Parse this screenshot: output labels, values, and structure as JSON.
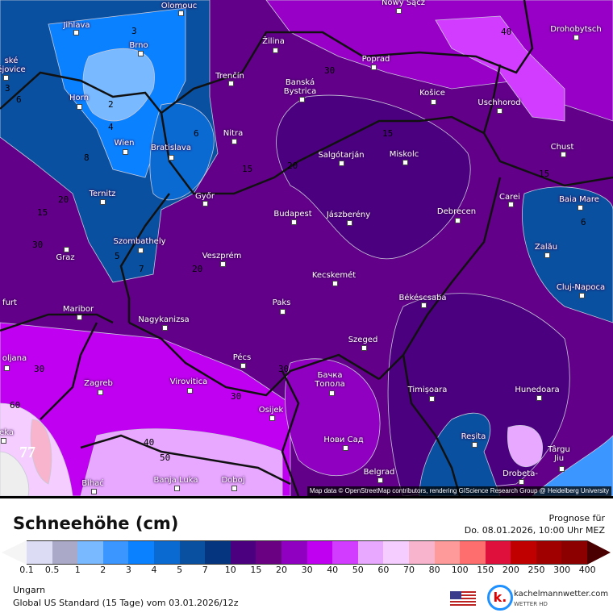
{
  "map": {
    "cities": [
      "Olomouc",
      "Nowy Sącz",
      "Jihlava",
      "Brno",
      "ské\nějovice",
      "Žilina",
      "Poprad",
      "Drohobytsch",
      "Trenčín",
      "Banská\nBystrica",
      "Košice",
      "Uschhorod",
      "Horn",
      "Nitra",
      "Wien",
      "Bratislava",
      "Salgótarján",
      "Miskolc",
      "Chust",
      "Ternitz",
      "Győr",
      "Carei",
      "Baia Mare",
      "Budapest",
      "Jászberény",
      "Debrecen",
      "Graz",
      "Szombathely",
      "Zalău",
      "Veszprém",
      "Cluj-Napoca",
      "Kecskemét",
      "Paks",
      "Békéscsaba",
      "Maribor",
      "Nagykanizsa",
      "Szeged",
      "Pécs",
      "oljana",
      "Бачка\nТопола",
      "Zagreb",
      "Virovitica",
      "Timișoara",
      "Hunedoara",
      "Osijek",
      "eka",
      "Reșita",
      "Нови Сад",
      "Târgu\nJiu",
      "Bihać",
      "Banja Luka",
      "Doboj",
      "Belgrad",
      "Drobeta-",
      "furt"
    ],
    "contour_labels": [
      "3",
      "2",
      "4",
      "6",
      "8",
      "3",
      "6",
      "15",
      "20",
      "20",
      "30",
      "40",
      "15",
      "15",
      "6",
      "5",
      "7",
      "20",
      "30",
      "30",
      "30",
      "60",
      "77",
      "40",
      "50",
      "30",
      "15"
    ],
    "attribution": "Map data © OpenStreetMap contributors, rendering GIScience Research Group @ Heidelberg University"
  },
  "legend": {
    "title": "Schneehöhe (cm)",
    "forecast_label": "Prognose für",
    "forecast_time": "Do. 08.01.2026, 10:00 Uhr MEZ",
    "colors": [
      "#dcdcf5",
      "#aaaac8",
      "#78b9ff",
      "#3c96ff",
      "#0a82ff",
      "#0a6ad2",
      "#0a50a0",
      "#05357f",
      "#4b0080",
      "#6a0082",
      "#9000c0",
      "#c000f0",
      "#d23cff",
      "#e8a8ff",
      "#f5cdff",
      "#f8b4cc",
      "#ff9a9a",
      "#ff6e6e",
      "#e0103c",
      "#c00000",
      "#a00000",
      "#8c0000"
    ],
    "under_color": "#f5f5f5",
    "over_color": "#4a0000",
    "ticks": [
      "0.1",
      "0.5",
      "1",
      "2",
      "3",
      "4",
      "5",
      "7",
      "10",
      "15",
      "20",
      "30",
      "40",
      "50",
      "60",
      "70",
      "80",
      "100",
      "150",
      "200",
      "250",
      "300",
      "400"
    ]
  },
  "footer": {
    "region": "Ungarn",
    "model_run": "Global US Standard (15 Tage) vom  03.01.2026/12z",
    "brand": "kachelmannwetter.com",
    "brand_sub": "WETTER HD",
    "logo_letter": "k.",
    "flag_icon": "us-flag-icon"
  }
}
